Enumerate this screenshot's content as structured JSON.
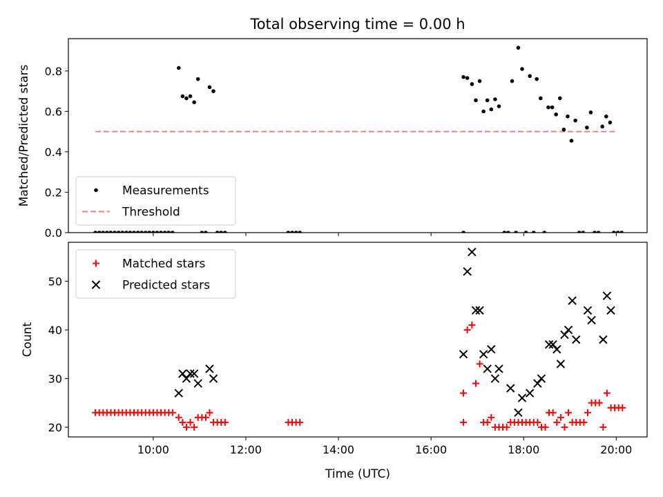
{
  "title": "Total observing time = 0.00 h",
  "chart_data": [
    {
      "type": "scatter",
      "ylabel": "Matched/Predicted stars",
      "xlim": [
        "08:10",
        "20:40"
      ],
      "ylim": [
        0,
        0.96
      ],
      "x_tick_labels": [
        "10:00",
        "12:00",
        "14:00",
        "16:00",
        "18:00",
        "20:00"
      ],
      "y_ticks": [
        "0.0",
        "0.2",
        "0.4",
        "0.6",
        "0.8"
      ],
      "legend_position": "lower-left",
      "threshold": {
        "name": "Threshold",
        "value": 0.5,
        "x_range": [
          "08:45",
          "20:00"
        ],
        "color": "#f08080",
        "style": "dashed"
      },
      "series": [
        {
          "name": "Measurements",
          "color": "#000000",
          "marker": "dot",
          "points": [
            [
              "08:45",
              0
            ],
            [
              "08:50",
              0
            ],
            [
              "08:55",
              0
            ],
            [
              "09:00",
              0
            ],
            [
              "09:05",
              0
            ],
            [
              "09:10",
              0
            ],
            [
              "09:15",
              0
            ],
            [
              "09:20",
              0
            ],
            [
              "09:25",
              0
            ],
            [
              "09:30",
              0
            ],
            [
              "09:35",
              0
            ],
            [
              "09:40",
              0
            ],
            [
              "09:45",
              0
            ],
            [
              "09:50",
              0
            ],
            [
              "09:55",
              0
            ],
            [
              "10:00",
              0
            ],
            [
              "10:05",
              0
            ],
            [
              "10:10",
              0
            ],
            [
              "10:15",
              0
            ],
            [
              "10:20",
              0
            ],
            [
              "10:25",
              0
            ],
            [
              "10:33",
              0.815
            ],
            [
              "10:38",
              0.675
            ],
            [
              "10:43",
              0.665
            ],
            [
              "10:48",
              0.675
            ],
            [
              "10:53",
              0.645
            ],
            [
              "10:58",
              0.76
            ],
            [
              "11:03",
              0
            ],
            [
              "11:08",
              0
            ],
            [
              "11:13",
              0.72
            ],
            [
              "11:18",
              0.7
            ],
            [
              "11:23",
              0
            ],
            [
              "11:28",
              0
            ],
            [
              "11:33",
              0
            ],
            [
              "12:55",
              0
            ],
            [
              "13:00",
              0
            ],
            [
              "13:05",
              0
            ],
            [
              "13:10",
              0
            ],
            [
              "16:42",
              0
            ],
            [
              "16:42",
              0.77
            ],
            [
              "16:47",
              0.765
            ],
            [
              "16:53",
              0.735
            ],
            [
              "16:58",
              0.655
            ],
            [
              "17:03",
              0.75
            ],
            [
              "17:08",
              0.6
            ],
            [
              "17:13",
              0.655
            ],
            [
              "17:18",
              0.61
            ],
            [
              "17:23",
              0.66
            ],
            [
              "17:28",
              0.625
            ],
            [
              "17:35",
              0
            ],
            [
              "17:40",
              0
            ],
            [
              "17:45",
              0.75
            ],
            [
              "17:50",
              0
            ],
            [
              "17:53",
              0.915
            ],
            [
              "17:58",
              0.81
            ],
            [
              "18:03",
              0
            ],
            [
              "18:08",
              0.775
            ],
            [
              "18:13",
              0
            ],
            [
              "18:17",
              0.76
            ],
            [
              "18:22",
              0.665
            ],
            [
              "18:27",
              0
            ],
            [
              "18:32",
              0.62
            ],
            [
              "18:37",
              0.62
            ],
            [
              "18:42",
              0.585
            ],
            [
              "18:47",
              0.665
            ],
            [
              "18:52",
              0.51
            ],
            [
              "18:57",
              0.575
            ],
            [
              "19:02",
              0.455
            ],
            [
              "19:07",
              0.555
            ],
            [
              "19:12",
              0
            ],
            [
              "19:17",
              0
            ],
            [
              "19:22",
              0.52
            ],
            [
              "19:27",
              0.595
            ],
            [
              "19:32",
              0
            ],
            [
              "19:37",
              0
            ],
            [
              "19:42",
              0.525
            ],
            [
              "19:47",
              0.575
            ],
            [
              "19:52",
              0.545
            ],
            [
              "19:57",
              0
            ],
            [
              "20:02",
              0
            ],
            [
              "20:07",
              0
            ]
          ]
        }
      ]
    },
    {
      "type": "scatter",
      "xlabel": "Time (UTC)",
      "ylabel": "Count",
      "xlim": [
        "08:10",
        "20:40"
      ],
      "ylim": [
        18,
        58
      ],
      "x_tick_labels": [
        "10:00",
        "12:00",
        "14:00",
        "16:00",
        "18:00",
        "20:00"
      ],
      "y_ticks": [
        "20",
        "30",
        "40",
        "50"
      ],
      "legend_position": "upper-left",
      "series": [
        {
          "name": "Matched stars",
          "color": "#ff0000",
          "marker": "plus",
          "points": [
            [
              "08:45",
              23
            ],
            [
              "08:50",
              23
            ],
            [
              "08:55",
              23
            ],
            [
              "09:00",
              23
            ],
            [
              "09:05",
              23
            ],
            [
              "09:10",
              23
            ],
            [
              "09:15",
              23
            ],
            [
              "09:20",
              23
            ],
            [
              "09:25",
              23
            ],
            [
              "09:30",
              23
            ],
            [
              "09:35",
              23
            ],
            [
              "09:40",
              23
            ],
            [
              "09:45",
              23
            ],
            [
              "09:50",
              23
            ],
            [
              "09:55",
              23
            ],
            [
              "10:00",
              23
            ],
            [
              "10:05",
              23
            ],
            [
              "10:10",
              23
            ],
            [
              "10:15",
              23
            ],
            [
              "10:20",
              23
            ],
            [
              "10:25",
              23
            ],
            [
              "10:33",
              22
            ],
            [
              "10:38",
              21
            ],
            [
              "10:43",
              20
            ],
            [
              "10:48",
              21
            ],
            [
              "10:53",
              20
            ],
            [
              "10:58",
              22
            ],
            [
              "11:03",
              22
            ],
            [
              "11:08",
              22
            ],
            [
              "11:13",
              23
            ],
            [
              "11:18",
              21
            ],
            [
              "11:23",
              21
            ],
            [
              "11:28",
              21
            ],
            [
              "11:33",
              21
            ],
            [
              "12:55",
              21
            ],
            [
              "13:00",
              21
            ],
            [
              "13:05",
              21
            ],
            [
              "13:10",
              21
            ],
            [
              "16:42",
              27
            ],
            [
              "16:42",
              21
            ],
            [
              "16:47",
              40
            ],
            [
              "16:53",
              41
            ],
            [
              "16:58",
              29
            ],
            [
              "17:03",
              33
            ],
            [
              "17:08",
              21
            ],
            [
              "17:13",
              21
            ],
            [
              "17:18",
              22
            ],
            [
              "17:23",
              20
            ],
            [
              "17:28",
              20
            ],
            [
              "17:33",
              20
            ],
            [
              "17:38",
              20
            ],
            [
              "17:43",
              21
            ],
            [
              "17:48",
              21
            ],
            [
              "17:53",
              21
            ],
            [
              "17:58",
              21
            ],
            [
              "18:03",
              21
            ],
            [
              "18:08",
              21
            ],
            [
              "18:13",
              21
            ],
            [
              "18:18",
              21
            ],
            [
              "18:23",
              20
            ],
            [
              "18:28",
              20
            ],
            [
              "18:33",
              23
            ],
            [
              "18:38",
              23
            ],
            [
              "18:43",
              21
            ],
            [
              "18:48",
              22
            ],
            [
              "18:53",
              20
            ],
            [
              "18:58",
              23
            ],
            [
              "19:03",
              21
            ],
            [
              "19:08",
              21
            ],
            [
              "19:13",
              21
            ],
            [
              "19:18",
              21
            ],
            [
              "19:23",
              23
            ],
            [
              "19:28",
              25
            ],
            [
              "19:33",
              25
            ],
            [
              "19:38",
              25
            ],
            [
              "19:43",
              20
            ],
            [
              "19:48",
              27
            ],
            [
              "19:53",
              24
            ],
            [
              "19:58",
              24
            ],
            [
              "20:03",
              24
            ],
            [
              "20:08",
              24
            ]
          ]
        },
        {
          "name": "Predicted stars",
          "color": "#000000",
          "marker": "x",
          "points": [
            [
              "10:33",
              27
            ],
            [
              "10:38",
              31
            ],
            [
              "10:43",
              30
            ],
            [
              "10:48",
              31
            ],
            [
              "10:53",
              31
            ],
            [
              "10:58",
              29
            ],
            [
              "11:13",
              32
            ],
            [
              "11:18",
              30
            ],
            [
              "16:42",
              35
            ],
            [
              "16:47",
              52
            ],
            [
              "16:53",
              56
            ],
            [
              "16:58",
              44
            ],
            [
              "17:03",
              44
            ],
            [
              "17:08",
              35
            ],
            [
              "17:13",
              32
            ],
            [
              "17:18",
              36
            ],
            [
              "17:23",
              30
            ],
            [
              "17:28",
              32
            ],
            [
              "17:43",
              28
            ],
            [
              "17:53",
              23
            ],
            [
              "17:58",
              26
            ],
            [
              "18:08",
              27
            ],
            [
              "18:18",
              29
            ],
            [
              "18:23",
              30
            ],
            [
              "18:33",
              37
            ],
            [
              "18:38",
              37
            ],
            [
              "18:43",
              36
            ],
            [
              "18:48",
              33
            ],
            [
              "18:53",
              39
            ],
            [
              "18:58",
              40
            ],
            [
              "19:03",
              46
            ],
            [
              "19:08",
              38
            ],
            [
              "19:23",
              44
            ],
            [
              "19:28",
              42
            ],
            [
              "19:43",
              38
            ],
            [
              "19:48",
              47
            ],
            [
              "19:53",
              44
            ]
          ]
        }
      ]
    }
  ]
}
